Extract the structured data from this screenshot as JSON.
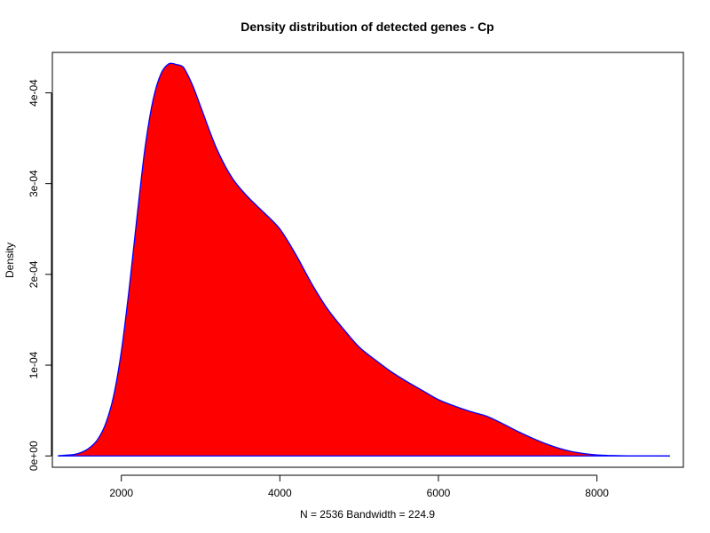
{
  "chart_data": {
    "type": "area",
    "title": "Density distribution of detected genes - Cp",
    "xlabel": "N = 2536   Bandwidth = 224.9",
    "ylabel": "Density",
    "xlim": [
      1130,
      9090
    ],
    "ylim": [
      -1.25e-05,
      0.0004445
    ],
    "x_ticks": [
      {
        "value": 2000,
        "label": "2000"
      },
      {
        "value": 4000,
        "label": "4000"
      },
      {
        "value": 6000,
        "label": "6000"
      },
      {
        "value": 8000,
        "label": "8000"
      }
    ],
    "y_ticks": [
      {
        "value": 0,
        "label": "0e+00"
      },
      {
        "value": 0.0001,
        "label": "1e-04"
      },
      {
        "value": 0.0002,
        "label": "2e-04"
      },
      {
        "value": 0.0003,
        "label": "3e-04"
      },
      {
        "value": 0.0004,
        "label": "4e-04"
      }
    ],
    "fill_color": "#ff0000",
    "line_color": "#0000ff",
    "grid": false,
    "x": [
      1200,
      1400,
      1500,
      1600,
      1700,
      1800,
      1900,
      2000,
      2100,
      2200,
      2300,
      2400,
      2500,
      2600,
      2700,
      2750,
      2800,
      2900,
      3000,
      3200,
      3400,
      3600,
      3800,
      4000,
      4200,
      4400,
      4600,
      4800,
      5000,
      5200,
      5400,
      5600,
      5800,
      6000,
      6200,
      6400,
      6600,
      6800,
      7000,
      7200,
      7400,
      7600,
      7800,
      8000,
      8200,
      8400,
      8600,
      8800,
      8920
    ],
    "y": [
      2e-07,
      1.5e-06,
      4e-06,
      9e-06,
      1.8e-05,
      3.5e-05,
      6.5e-05,
      0.000115,
      0.000185,
      0.000265,
      0.00034,
      0.000392,
      0.000421,
      0.000432,
      0.000431,
      0.00043,
      0.000426,
      0.000408,
      0.000385,
      0.000339,
      0.000306,
      0.000285,
      0.000268,
      0.00025,
      0.000222,
      0.00019,
      0.000162,
      0.00014,
      0.00012,
      0.000106,
      9.3e-05,
      8.2e-05,
      7.2e-05,
      6.2e-05,
      5.5e-05,
      4.9e-05,
      4.4e-05,
      3.6e-05,
      2.7e-05,
      1.9e-05,
      1.2e-05,
      6.5e-06,
      3e-06,
      1e-06,
      4e-07,
      1e-07,
      1e-07,
      1e-07,
      0.0
    ]
  }
}
